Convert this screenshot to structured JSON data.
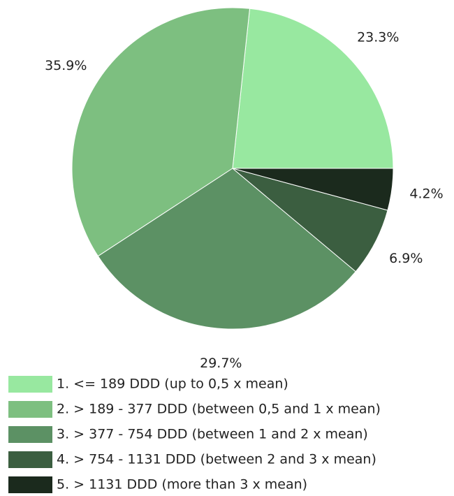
{
  "chart_data": {
    "type": "pie",
    "categories": [
      "1. <= 189 DDD (up to 0,5 x mean)",
      "2. > 189 - 377 DDD (between 0,5 and 1 x mean)",
      "3. > 377 - 754 DDD (between 1 and 2 x mean)",
      "4. > 754 - 1131 DDD (between 2 and 3 x mean)",
      "5. > 1131 DDD (more than 3 x mean)"
    ],
    "values": [
      23.3,
      35.9,
      29.7,
      6.9,
      4.2
    ],
    "value_labels": [
      "23.3%",
      "35.9%",
      "29.7%",
      "6.9%",
      "4.2%"
    ],
    "colors": [
      "#98e8a0",
      "#7dbf80",
      "#5c9164",
      "#3b5e40",
      "#1b2a1d"
    ]
  }
}
